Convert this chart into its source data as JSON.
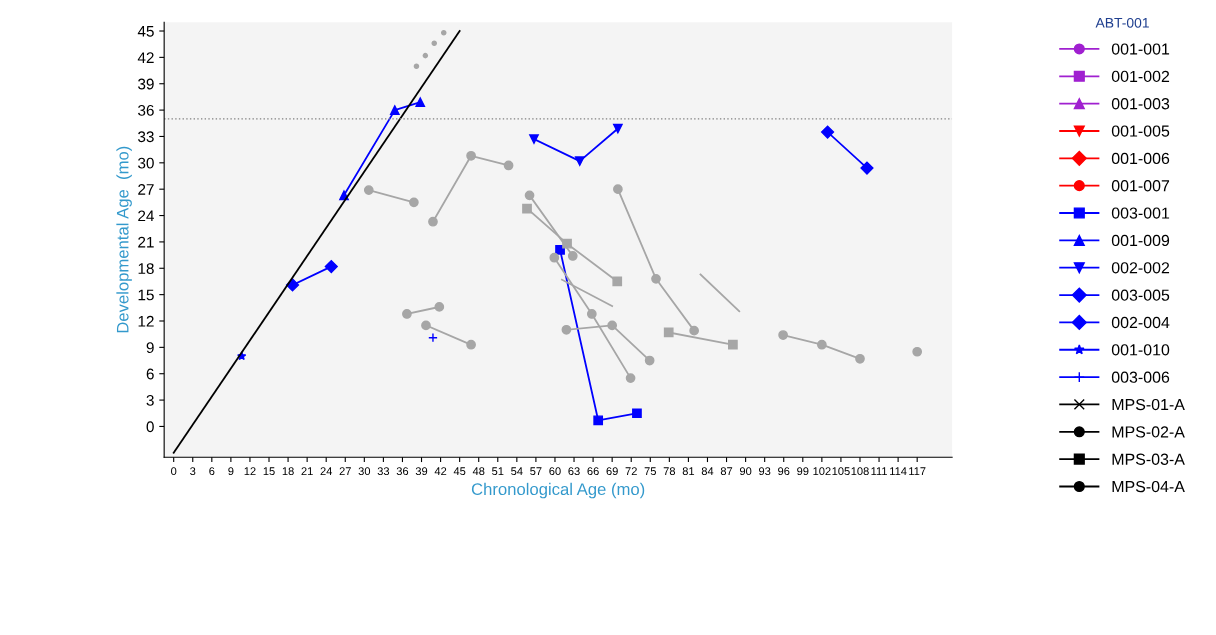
{
  "chart_data": {
    "type": "line",
    "xlabel": "Chronological Age (mo)",
    "ylabel": "Developmental Age  (mo)",
    "legend_title": "ABT-001",
    "legend": "right",
    "grid": false,
    "xlim": [
      -1.5,
      122.5
    ],
    "ylim": [
      -3.5,
      46
    ],
    "xticks": [
      0,
      3,
      6,
      9,
      12,
      15,
      18,
      21,
      24,
      27,
      30,
      33,
      36,
      39,
      42,
      45,
      48,
      51,
      54,
      57,
      60,
      63,
      66,
      69,
      72,
      75,
      78,
      81,
      84,
      87,
      90,
      93,
      96,
      99,
      102,
      105,
      108,
      111,
      114,
      117
    ],
    "yticks": [
      0,
      3,
      6,
      9,
      12,
      15,
      18,
      21,
      24,
      27,
      30,
      33,
      36,
      39,
      42,
      45
    ],
    "ref_lines": [
      {
        "axis": "y",
        "value": 35,
        "color": "#808080",
        "line_style": "dotted"
      }
    ],
    "series": [
      {
        "name": "001-001",
        "color": "#a020d0",
        "marker": "circle"
      },
      {
        "name": "001-002",
        "color": "#a020d0",
        "marker": "square"
      },
      {
        "name": "001-003",
        "color": "#a020d0",
        "marker": "triangle"
      },
      {
        "name": "001-005",
        "color": "#ff0000",
        "marker": "triangle_down"
      },
      {
        "name": "001-006",
        "color": "#ff0000",
        "marker": "diamond"
      },
      {
        "name": "001-007",
        "color": "#ff0000",
        "marker": "circle"
      },
      {
        "name": "003-001",
        "color": "#0000ff",
        "marker": "square",
        "x": [
          60.8,
          66.8,
          72.9
        ],
        "values": [
          20.1,
          0.7,
          1.5
        ]
      },
      {
        "name": "001-009",
        "color": "#0000ff",
        "marker": "triangle",
        "x": [
          26.8,
          34.8,
          38.8
        ],
        "values": [
          26.3,
          36.0,
          36.9
        ]
      },
      {
        "name": "002-002",
        "color": "#0000ff",
        "marker": "triangle_down",
        "x": [
          56.7,
          63.9,
          69.9
        ],
        "values": [
          32.7,
          30.2,
          33.9
        ]
      },
      {
        "name": "003-005",
        "color": "#0000ff",
        "marker": "diamond",
        "x": [
          102.9,
          109.1
        ],
        "values": [
          33.5,
          29.4
        ]
      },
      {
        "name": "002-004",
        "color": "#0000ff",
        "marker": "diamond",
        "x": [
          18.7,
          24.8
        ],
        "values": [
          16.1,
          18.2
        ]
      },
      {
        "name": "001-010",
        "color": "#0000ff",
        "marker": "star",
        "x": [
          10.7
        ],
        "values": [
          8.0
        ]
      },
      {
        "name": "003-006",
        "color": "#0000ff",
        "marker": "plus",
        "x": [
          40.8
        ],
        "values": [
          10.1
        ]
      },
      {
        "name": "MPS-01-A",
        "color": "#000000",
        "marker": "cross"
      },
      {
        "name": "MPS-02-A",
        "color": "#000000",
        "marker": "circle"
      },
      {
        "name": "MPS-03-A",
        "color": "#000000",
        "marker": "square"
      },
      {
        "name": "MPS-04-A",
        "color": "#000000",
        "marker": "circle"
      },
      {
        "color": "#000000",
        "marker": "none",
        "x": [
          0,
          45
        ],
        "values": [
          -3,
          45
        ]
      },
      {
        "color": "#a6a6a6",
        "marker": "circle",
        "x": [
          40.8,
          46.8,
          52.7
        ],
        "values": [
          23.3,
          30.8,
          29.7
        ]
      },
      {
        "color": "#a6a6a6",
        "marker": "circle",
        "x": [
          30.7,
          37.8
        ],
        "values": [
          26.9,
          25.5
        ]
      },
      {
        "color": "#a6a6a6",
        "marker": "circle",
        "x": [
          36.7,
          41.8
        ],
        "values": [
          12.8,
          13.6
        ]
      },
      {
        "color": "#a6a6a6",
        "marker": "circle",
        "x": [
          39.7,
          46.8
        ],
        "values": [
          11.5,
          9.3
        ]
      },
      {
        "color": "#a6a6a6",
        "marker": "circle",
        "x": [
          69.9,
          75.9,
          81.9
        ],
        "values": [
          27.0,
          16.8,
          10.9
        ]
      },
      {
        "color": "#a6a6a6",
        "marker": "circle",
        "x": [
          56.0,
          62.8
        ],
        "values": [
          26.3,
          19.4
        ]
      },
      {
        "color": "#a6a6a6",
        "marker": "square",
        "x": [
          55.6,
          61.9,
          69.8
        ],
        "values": [
          24.8,
          20.8,
          16.5
        ]
      },
      {
        "color": "#a6a6a6",
        "marker": "circle",
        "x": [
          59.9,
          65.8,
          71.9
        ],
        "values": [
          19.2,
          12.8,
          5.5
        ]
      },
      {
        "color": "#a6a6a6",
        "marker": "none",
        "x": [
          61.1,
          69.0
        ],
        "values": [
          16.7,
          13.7
        ]
      },
      {
        "color": "#a6a6a6",
        "marker": "circle",
        "x": [
          61.8,
          69.0,
          74.9
        ],
        "values": [
          11.0,
          11.5,
          7.5
        ]
      },
      {
        "color": "#a6a6a6",
        "marker": "square",
        "x": [
          77.9,
          88.0
        ],
        "values": [
          10.7,
          9.3
        ]
      },
      {
        "color": "#a6a6a6",
        "marker": "none",
        "x": [
          82.9,
          89.0
        ],
        "values": [
          17.3,
          13.1
        ]
      },
      {
        "color": "#a6a6a6",
        "marker": "circle",
        "x": [
          95.9,
          102.0,
          108.0
        ],
        "values": [
          10.4,
          9.3,
          7.7
        ]
      },
      {
        "color": "#a6a6a6",
        "marker": "circle",
        "x": [
          117.0
        ],
        "values": [
          8.5
        ]
      },
      {
        "type": "scatter",
        "color": "#a6a6a6",
        "marker": "circle",
        "x": [
          38.2,
          39.6,
          41.0,
          42.5
        ],
        "values": [
          41.0,
          42.2,
          43.6,
          44.8
        ]
      }
    ]
  }
}
